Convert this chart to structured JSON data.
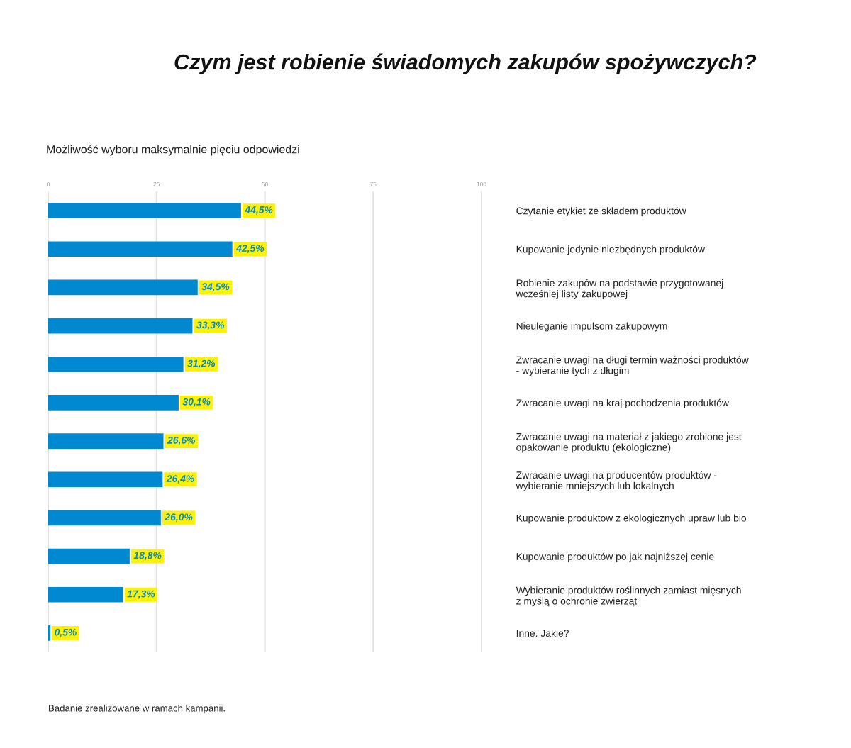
{
  "chart_data": {
    "type": "bar",
    "orientation": "horizontal",
    "title": "Czym jest robienie świadomych zakupów spożywczych?",
    "subtitle": "Możliwość wyboru maksymalnie pięciu odpowiedzi",
    "categories": [
      "Czytanie etykiet ze składem produktów",
      "Kupowanie jedynie niezbędnych produktów",
      "Robienie zakupów na podstawie przygotowanej\nwcześniej listy zakupowej",
      "Nieuleganie impulsom zakupowym",
      "Zwracanie uwagi na długi termin ważności produktów\n- wybieranie tych z długim",
      "Zwracanie uwagi na kraj pochodzenia produktów",
      "Zwracanie uwagi na materiał z jakiego zrobione jest\nopakowanie produktu (ekologiczne)",
      "Zwracanie uwagi na producentów produktów -\nwybieranie mniejszych lub lokalnych",
      "Kupowanie produktow z ekologicznych upraw lub bio",
      "Kupowanie produktów po jak najniższej cenie",
      "Wybieranie produktów roślinnych zamiast mięsnych\nz myślą o ochronie zwierząt",
      "Inne. Jakie?"
    ],
    "values": [
      44.5,
      42.5,
      34.5,
      33.3,
      31.2,
      30.1,
      26.6,
      26.4,
      26.0,
      18.8,
      17.3,
      0.5
    ],
    "value_labels": [
      "44,5%",
      "42,5%",
      "34,5%",
      "33,3%",
      "31,2%",
      "30,1%",
      "26,6%",
      "26,4%",
      "26,0%",
      "18,8%",
      "17,3%",
      "0,5%"
    ],
    "color": "#0088d1",
    "xlim": [
      0,
      100
    ],
    "xticks": [
      0,
      25,
      50,
      75,
      100
    ],
    "grid": "x",
    "annotations": [
      "Badanie zrealizowane w ramach kampanii."
    ]
  }
}
